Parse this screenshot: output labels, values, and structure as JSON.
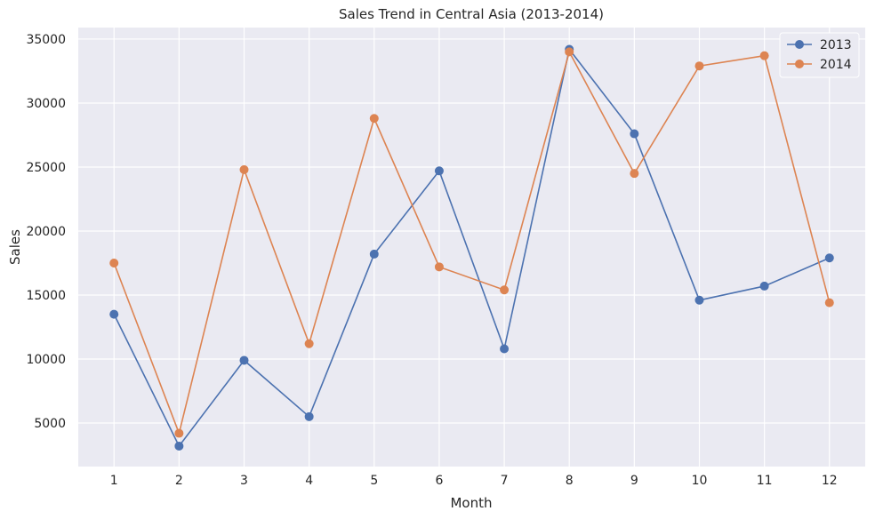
{
  "chart_data": {
    "type": "line",
    "title": "Sales Trend in Central Asia (2013-2014)",
    "xlabel": "Month",
    "ylabel": "Sales",
    "x": [
      1,
      2,
      3,
      4,
      5,
      6,
      7,
      8,
      9,
      10,
      11,
      12
    ],
    "x_tick_labels": [
      "1",
      "2",
      "3",
      "4",
      "5",
      "6",
      "7",
      "8",
      "9",
      "10",
      "11",
      "12"
    ],
    "xlim": [
      0.45,
      12.55
    ],
    "ylim": [
      1600,
      35900
    ],
    "y_ticks": [
      5000,
      10000,
      15000,
      20000,
      25000,
      30000,
      35000
    ],
    "y_tick_labels": [
      "5000",
      "10000",
      "15000",
      "20000",
      "25000",
      "30000",
      "35000"
    ],
    "grid": true,
    "legend_position": "top-right",
    "series": [
      {
        "name": "2013",
        "color": "#4c72b0",
        "marker": "circle",
        "values": [
          13500,
          3200,
          9900,
          5500,
          18200,
          24700,
          10800,
          34200,
          27600,
          14600,
          15700,
          17900
        ]
      },
      {
        "name": "2014",
        "color": "#dd8452",
        "marker": "circle",
        "values": [
          17500,
          4200,
          24800,
          11200,
          28800,
          17200,
          15400,
          34000,
          24500,
          32900,
          33700,
          14400
        ]
      }
    ]
  },
  "colors": {
    "plot_background": "#eaeaf2",
    "grid": "#ffffff",
    "text": "#262626"
  }
}
